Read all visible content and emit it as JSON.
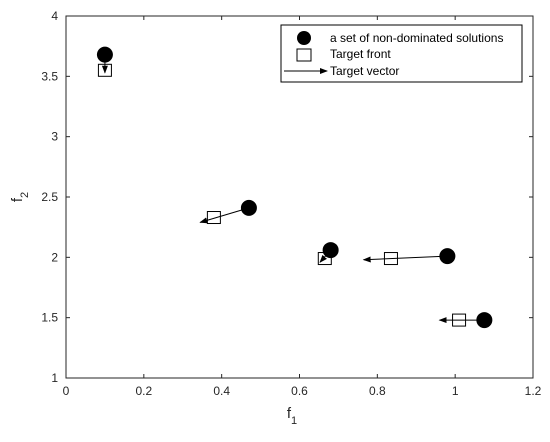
{
  "chart_data": {
    "type": "scatter",
    "title": "",
    "xlabel": "f",
    "xlabel_sub": "1",
    "ylabel": "f",
    "ylabel_sub": "2",
    "xlim": [
      0,
      1.2
    ],
    "ylim": [
      1,
      4
    ],
    "xticks": [
      0,
      0.2,
      0.4,
      0.6,
      0.8,
      1,
      1.2
    ],
    "xtick_labels": [
      "0",
      "0.2",
      "0.4",
      "0.6",
      "0.8",
      "1",
      "1.2"
    ],
    "yticks": [
      1,
      1.5,
      2,
      2.5,
      3,
      3.5,
      4
    ],
    "ytick_labels": [
      "1",
      "1.5",
      "2",
      "2.5",
      "3",
      "3.5",
      "4"
    ],
    "grid": false,
    "legend_position": "top-right",
    "series": [
      {
        "name": "a set of non-dominated solutions",
        "marker": "filled-circle",
        "color": "#000000",
        "points": [
          {
            "x": 0.1,
            "y": 3.68
          },
          {
            "x": 0.47,
            "y": 2.41
          },
          {
            "x": 0.68,
            "y": 2.06
          },
          {
            "x": 0.98,
            "y": 2.01
          },
          {
            "x": 1.075,
            "y": 1.48
          }
        ]
      },
      {
        "name": "Target front",
        "marker": "open-square",
        "color": "#000000",
        "points": [
          {
            "x": 0.1,
            "y": 3.55
          },
          {
            "x": 0.38,
            "y": 2.33
          },
          {
            "x": 0.665,
            "y": 1.99
          },
          {
            "x": 0.835,
            "y": 1.99
          },
          {
            "x": 1.01,
            "y": 1.48
          }
        ]
      },
      {
        "name": "Target vector",
        "marker": "arrow",
        "color": "#000000",
        "vectors": [
          {
            "x0": 0.1,
            "y0": 3.68,
            "x1": 0.1,
            "y1": 3.53
          },
          {
            "x0": 0.47,
            "y0": 2.41,
            "x1": 0.345,
            "y1": 2.29
          },
          {
            "x0": 0.68,
            "y0": 2.06,
            "x1": 0.653,
            "y1": 1.96
          },
          {
            "x0": 0.98,
            "y0": 2.01,
            "x1": 0.765,
            "y1": 1.98
          },
          {
            "x0": 1.075,
            "y0": 1.48,
            "x1": 0.96,
            "y1": 1.48
          }
        ]
      }
    ]
  }
}
